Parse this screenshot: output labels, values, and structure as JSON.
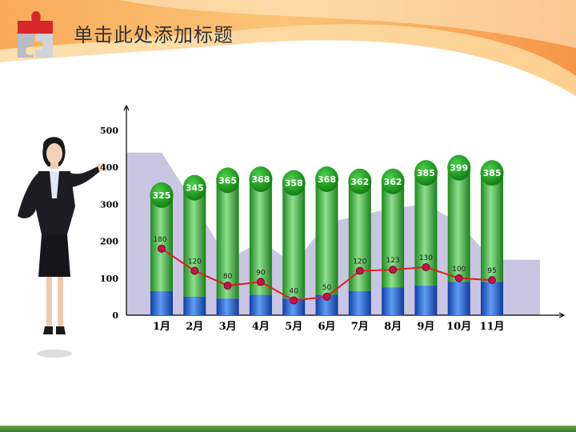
{
  "slide": {
    "title": "单击此处添加标题"
  },
  "chart_data": {
    "type": "bar",
    "categories": [
      "1月",
      "2月",
      "3月",
      "4月",
      "5月",
      "6月",
      "7月",
      "8月",
      "9月",
      "10月",
      "11月"
    ],
    "series": [
      {
        "name": "",
        "kind": "stacked-bar",
        "values": [
          325,
          345,
          365,
          368,
          358,
          368,
          362,
          362,
          385,
          399,
          385
        ]
      },
      {
        "name": "",
        "kind": "line",
        "values": [
          180,
          120,
          80,
          90,
          40,
          50,
          120,
          123,
          130,
          100,
          95
        ]
      },
      {
        "name": "",
        "kind": "area",
        "values": [
          440,
          300,
          150,
          200,
          140,
          250,
          270,
          290,
          300,
          250,
          150
        ]
      }
    ],
    "blue_base_values": [
      65,
      50,
      45,
      55,
      45,
      55,
      65,
      75,
      80,
      90,
      90
    ],
    "yticks": [
      "0",
      "100",
      "200",
      "300",
      "400",
      "500"
    ],
    "ylim": [
      0,
      500
    ],
    "title": "",
    "xlabel": "",
    "ylabel": "",
    "grid": false,
    "colors": {
      "bar_green": "#2ea62e",
      "bar_blue": "#1a56c8",
      "line": "#e02020",
      "marker": "#c8104a",
      "area": "#c4bfe0"
    }
  }
}
